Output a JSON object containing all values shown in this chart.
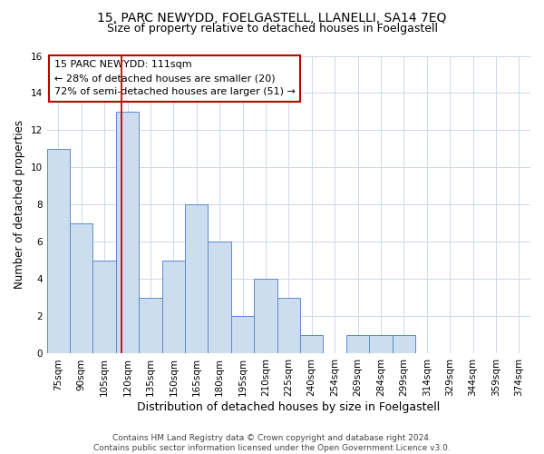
{
  "title": "15, PARC NEWYDD, FOELGASTELL, LLANELLI, SA14 7EQ",
  "subtitle": "Size of property relative to detached houses in Foelgastell",
  "xlabel": "Distribution of detached houses by size in Foelgastell",
  "ylabel": "Number of detached properties",
  "categories": [
    "75sqm",
    "90sqm",
    "105sqm",
    "120sqm",
    "135sqm",
    "150sqm",
    "165sqm",
    "180sqm",
    "195sqm",
    "210sqm",
    "225sqm",
    "240sqm",
    "254sqm",
    "269sqm",
    "284sqm",
    "299sqm",
    "314sqm",
    "329sqm",
    "344sqm",
    "359sqm",
    "374sqm"
  ],
  "values": [
    11,
    7,
    5,
    13,
    3,
    5,
    8,
    6,
    2,
    4,
    3,
    1,
    0,
    1,
    1,
    1,
    0,
    0,
    0,
    0,
    0
  ],
  "bar_color": "#ccddf0",
  "bar_edge_color": "#5b8cc8",
  "bar_width": 1.0,
  "ylim": [
    0,
    16
  ],
  "yticks": [
    0,
    2,
    4,
    6,
    8,
    10,
    12,
    14,
    16
  ],
  "red_line_x": 2.73,
  "annotation_line1": "15 PARC NEWYDD: 111sqm",
  "annotation_line2": "← 28% of detached houses are smaller (20)",
  "annotation_line3": "72% of semi-detached houses are larger (51) →",
  "annotation_box_color": "#ffffff",
  "annotation_box_edge_color": "#c00000",
  "footer_text": "Contains HM Land Registry data © Crown copyright and database right 2024.\nContains public sector information licensed under the Open Government Licence v3.0.",
  "title_fontsize": 10,
  "subtitle_fontsize": 9,
  "xlabel_fontsize": 9,
  "ylabel_fontsize": 8.5,
  "tick_fontsize": 7.5,
  "annotation_fontsize": 8,
  "footer_fontsize": 6.5,
  "background_color": "#ffffff",
  "grid_color": "#cdd8ea"
}
